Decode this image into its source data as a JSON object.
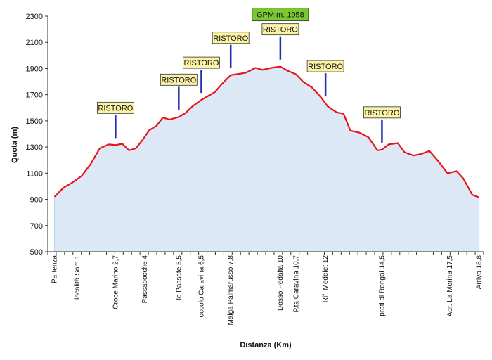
{
  "chart_data": {
    "type": "area",
    "xlabel": "Distanza (Km)",
    "ylabel": "Quota (m)",
    "ylim": [
      500,
      2300
    ],
    "yticks": [
      500,
      700,
      900,
      1100,
      1300,
      1500,
      1700,
      1900,
      2100,
      2300
    ],
    "grid": false,
    "colors": {
      "line": "#e8141c",
      "fill": "#dce8f6",
      "drop": "#8fb4dd",
      "marker": "#1f2fb0",
      "box_fill": "#fbf3a6",
      "box_border": "#333333",
      "gpm_fill": "#7cc832"
    },
    "series": [
      {
        "x": [
          0,
          0.4,
          0.8,
          1.2,
          1.6,
          2.0,
          2.4,
          2.7,
          3.0,
          3.3,
          3.6,
          3.9,
          4.2,
          4.5,
          4.8,
          5.1,
          5.5,
          5.8,
          6.1,
          6.5,
          6.8,
          7.1,
          7.4,
          7.8,
          8.2,
          8.5,
          8.9,
          9.2,
          9.6,
          10.0,
          10.3,
          10.7,
          11.0,
          11.4,
          11.8,
          12.1,
          12.5,
          12.8,
          13.1,
          13.5,
          13.9,
          14.3,
          14.5,
          14.8,
          15.2,
          15.5,
          15.9,
          16.2,
          16.6,
          17.0,
          17.4,
          17.8,
          18.1,
          18.5,
          18.8
        ],
        "y": [
          920,
          990,
          1030,
          1080,
          1170,
          1290,
          1320,
          1315,
          1325,
          1275,
          1290,
          1355,
          1430,
          1460,
          1525,
          1510,
          1530,
          1560,
          1610,
          1660,
          1690,
          1720,
          1780,
          1850,
          1860,
          1870,
          1905,
          1890,
          1905,
          1915,
          1885,
          1855,
          1800,
          1755,
          1680,
          1610,
          1565,
          1555,
          1425,
          1410,
          1375,
          1275,
          1280,
          1320,
          1330,
          1260,
          1235,
          1245,
          1270,
          1190,
          1100,
          1115,
          1060,
          935,
          915
        ]
      }
    ],
    "x_labels": [
      {
        "x": 0,
        "label": "Partenza"
      },
      {
        "x": 1.0,
        "label": "località Som    1"
      },
      {
        "x": 2.7,
        "label": "Croce Marino   2,7"
      },
      {
        "x": 4.0,
        "label": "Passabocche    4"
      },
      {
        "x": 5.5,
        "label": "le Passate   5,5"
      },
      {
        "x": 6.5,
        "label": "roccolo Caravina   6,5"
      },
      {
        "x": 7.8,
        "label": "Malga Palmarusso 7,8"
      },
      {
        "x": 10.0,
        "label": "Dosso Pedalta    10"
      },
      {
        "x": 10.7,
        "label": "P.ta Caravina  10,7"
      },
      {
        "x": 12.0,
        "label": "Rif. Medelet  12"
      },
      {
        "x": 14.5,
        "label": "prati di Rongai   14,5"
      },
      {
        "x": 17.5,
        "label": "Agr. La Morina  17,5"
      },
      {
        "x": 18.8,
        "label": "Arrivo  18,8"
      }
    ],
    "annotations": [
      {
        "text": "RISTORO",
        "x": 2.7
      },
      {
        "text": "RISTORO",
        "x": 5.5
      },
      {
        "text": "RISTORO",
        "x": 6.5
      },
      {
        "text": "RISTORO",
        "x": 7.8
      },
      {
        "text": "RISTORO",
        "x": 10.0
      },
      {
        "text": "RISTORO",
        "x": 12.0
      },
      {
        "text": "RISTORO",
        "x": 14.5
      }
    ],
    "gpm_label": "GPM m. 1958"
  }
}
